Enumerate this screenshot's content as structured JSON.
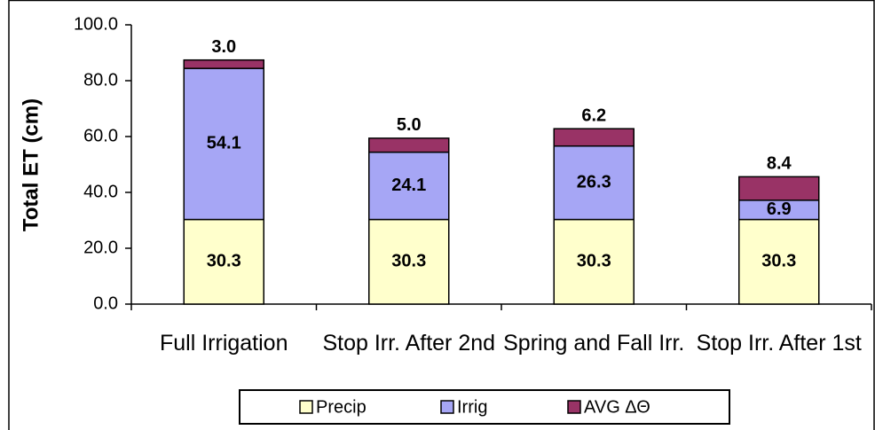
{
  "chart_data": {
    "type": "stacked_bar",
    "y_label": "Total ET (cm)",
    "categories": [
      "Full Irrigation",
      "Stop Irr. After 2nd",
      "Spring and Fall Irr.",
      "Stop Irr. After 1st"
    ],
    "series": [
      {
        "name": "Precip",
        "color": "#ffffcc",
        "values": [
          30.3,
          30.3,
          30.3,
          30.3
        ],
        "value_labels": [
          "30.3",
          "30.3",
          "30.3",
          "30.3"
        ]
      },
      {
        "name": "Irrig",
        "color": "#a6a6f5",
        "values": [
          54.1,
          24.1,
          26.3,
          6.9
        ],
        "value_labels": [
          "54.1",
          "24.1",
          "26.3",
          "6.9"
        ]
      },
      {
        "name": "AVG ΔΘ",
        "color": "#993366",
        "values": [
          3.0,
          5.0,
          6.2,
          8.4
        ],
        "value_labels": [
          "3.0",
          "5.0",
          "6.2",
          "8.4"
        ]
      }
    ],
    "ylim": [
      0,
      100
    ],
    "yticks": [
      {
        "value": 0,
        "label": "0.0"
      },
      {
        "value": 20,
        "label": "20.0"
      },
      {
        "value": 40,
        "label": "40.0"
      },
      {
        "value": 60,
        "label": "60.0"
      },
      {
        "value": 80,
        "label": "80.0"
      },
      {
        "value": 100,
        "label": "100.0"
      }
    ],
    "grid": false,
    "legend": "bottom"
  }
}
